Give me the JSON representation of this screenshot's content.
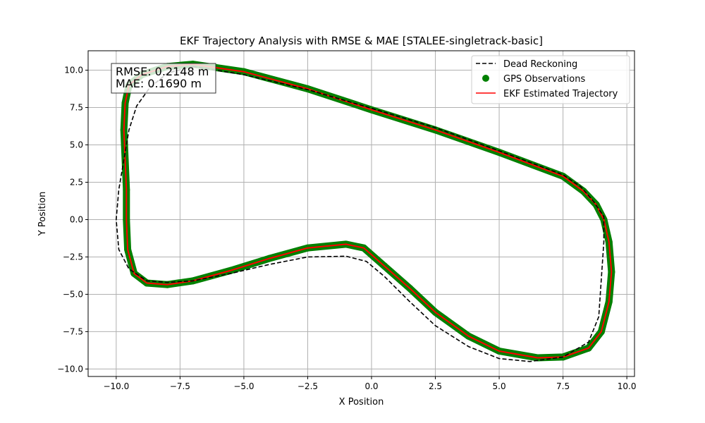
{
  "chart_data": {
    "type": "line",
    "title": "EKF Trajectory Analysis with RMSE & MAE [STALEE-singletrack-basic]",
    "xlabel": "X Position",
    "ylabel": "Y Position",
    "xlim": [
      -11.1,
      10.3
    ],
    "ylim": [
      -10.5,
      11.3
    ],
    "xticks": [
      -10.0,
      -7.5,
      -5.0,
      -2.5,
      0.0,
      2.5,
      5.0,
      7.5,
      10.0
    ],
    "xtick_labels": [
      "−10.0",
      "−7.5",
      "−5.0",
      "−2.5",
      "0.0",
      "2.5",
      "5.0",
      "7.5",
      "10.0"
    ],
    "yticks": [
      -10.0,
      -7.5,
      -5.0,
      -2.5,
      0.0,
      2.5,
      5.0,
      7.5,
      10.0
    ],
    "ytick_labels": [
      "−10.0",
      "−7.5",
      "−5.0",
      "−2.5",
      "0.0",
      "2.5",
      "5.0",
      "7.5",
      "10.0"
    ],
    "grid": true,
    "legend_position": "top-right",
    "annotation": {
      "lines": [
        "RMSE: 0.2148 m",
        "MAE: 0.1690 m"
      ],
      "position": "top-left"
    },
    "series": [
      {
        "name": "Dead Reckoning",
        "type": "line",
        "style": "dashed",
        "color": "#000000",
        "x": [
          -7.0,
          -5.0,
          -2.5,
          0.0,
          2.5,
          5.0,
          7.5,
          8.2,
          8.7,
          9.1,
          9.1,
          9.0,
          8.9,
          8.5,
          7.5,
          6.2,
          5.0,
          3.8,
          2.5,
          1.5,
          0.5,
          -0.2,
          -1.0,
          -2.5,
          -4.0,
          -5.5,
          -7.0,
          -8.0,
          -8.8,
          -9.5,
          -9.9,
          -10.0,
          -9.9,
          -9.7,
          -9.5,
          -9.2,
          -8.7,
          -8.0,
          -7.0
        ],
        "y": [
          10.25,
          9.7,
          8.7,
          7.45,
          6.15,
          4.6,
          3.0,
          2.2,
          1.2,
          0.2,
          -1.5,
          -4.0,
          -6.5,
          -8.2,
          -9.2,
          -9.5,
          -9.3,
          -8.5,
          -7.1,
          -5.5,
          -3.8,
          -2.8,
          -2.45,
          -2.5,
          -3.0,
          -3.6,
          -4.1,
          -4.2,
          -4.1,
          -3.3,
          -2.0,
          0.0,
          2.0,
          4.0,
          6.0,
          7.6,
          8.8,
          9.8,
          10.25
        ]
      },
      {
        "name": "GPS Observations",
        "type": "scatter",
        "color": "#008000",
        "x": [
          -7.0,
          -5.0,
          -2.5,
          0.0,
          2.5,
          5.0,
          7.5,
          8.3,
          8.8,
          9.1,
          9.3,
          9.4,
          9.3,
          9.0,
          8.5,
          7.5,
          6.5,
          5.0,
          3.8,
          2.5,
          1.5,
          0.5,
          -0.3,
          -1.0,
          -2.5,
          -4.0,
          -5.5,
          -7.0,
          -8.0,
          -8.8,
          -9.3,
          -9.55,
          -9.6,
          -9.6,
          -9.65,
          -9.7,
          -9.65,
          -9.5,
          -9.0,
          -8.0,
          -7.0
        ],
        "y": [
          10.4,
          9.9,
          8.75,
          7.35,
          6.0,
          4.5,
          2.9,
          1.9,
          1.0,
          0.0,
          -1.5,
          -3.5,
          -5.5,
          -7.5,
          -8.6,
          -9.2,
          -9.25,
          -8.8,
          -7.8,
          -6.2,
          -4.6,
          -3.1,
          -1.9,
          -1.65,
          -1.9,
          -2.6,
          -3.4,
          -4.1,
          -4.35,
          -4.25,
          -3.6,
          -2.0,
          0.0,
          2.0,
          4.0,
          6.0,
          7.8,
          9.0,
          9.7,
          10.25,
          10.4
        ]
      },
      {
        "name": "EKF Estimated Trajectory",
        "type": "line",
        "style": "solid",
        "color": "#ff0000",
        "x": [
          -7.0,
          -5.0,
          -2.5,
          0.0,
          2.5,
          5.0,
          7.5,
          8.3,
          8.8,
          9.1,
          9.3,
          9.4,
          9.3,
          9.0,
          8.5,
          7.5,
          6.5,
          5.0,
          3.8,
          2.5,
          1.5,
          0.5,
          -0.3,
          -1.0,
          -2.5,
          -4.0,
          -5.5,
          -7.0,
          -8.0,
          -8.8,
          -9.3,
          -9.55,
          -9.6,
          -9.6,
          -9.65,
          -9.7,
          -9.65,
          -9.5,
          -9.0,
          -8.0,
          -7.0
        ],
        "y": [
          10.4,
          9.9,
          8.75,
          7.35,
          6.0,
          4.5,
          2.9,
          1.9,
          1.0,
          0.0,
          -1.5,
          -3.5,
          -5.5,
          -7.5,
          -8.6,
          -9.2,
          -9.25,
          -8.8,
          -7.8,
          -6.2,
          -4.6,
          -3.1,
          -1.9,
          -1.65,
          -1.9,
          -2.6,
          -3.4,
          -4.1,
          -4.35,
          -4.25,
          -3.6,
          -2.0,
          0.0,
          2.0,
          4.0,
          6.0,
          7.8,
          9.0,
          9.7,
          10.25,
          10.4
        ]
      }
    ]
  }
}
